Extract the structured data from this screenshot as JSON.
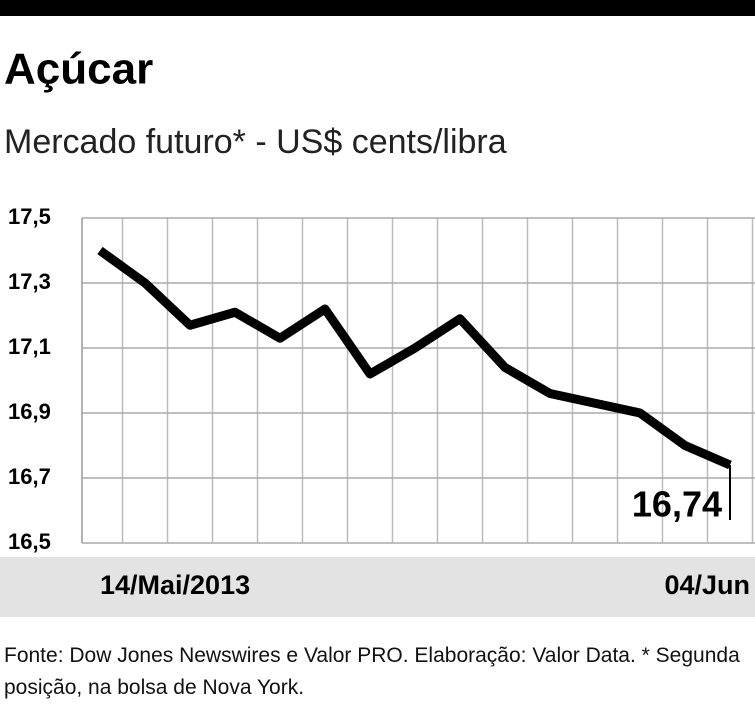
{
  "chart_data": {
    "type": "line",
    "title": "Açúcar",
    "subtitle": "Mercado futuro* - US$ cents/libra",
    "categories": [
      "14/Mai/2013",
      null,
      null,
      null,
      null,
      null,
      null,
      null,
      null,
      null,
      null,
      null,
      null,
      null,
      "04/Jun"
    ],
    "series": [
      {
        "color": "#000000",
        "values": [
          17.4,
          17.3,
          17.17,
          17.21,
          17.13,
          17.22,
          17.02,
          17.1,
          17.19,
          17.04,
          16.96,
          16.93,
          16.9,
          16.8,
          16.74
        ],
        "value_labels": [
          null,
          null,
          null,
          null,
          null,
          null,
          null,
          null,
          null,
          null,
          null,
          null,
          null,
          null,
          "16,74"
        ]
      }
    ],
    "ylim": [
      16.5,
      17.5
    ],
    "yticks": [
      {
        "value": 16.5,
        "label": "16,5"
      },
      {
        "value": 16.7,
        "label": "16,7"
      },
      {
        "value": 16.9,
        "label": "16,9"
      },
      {
        "value": 17.1,
        "label": "17,1"
      },
      {
        "value": 17.3,
        "label": "17,3"
      },
      {
        "value": 17.5,
        "label": "17,5"
      }
    ],
    "grid": true,
    "source": "Fonte: Dow Jones Newswires e Valor PRO. Elaboração: Valor Data. * Segunda posição, na bolsa de Nova York."
  }
}
